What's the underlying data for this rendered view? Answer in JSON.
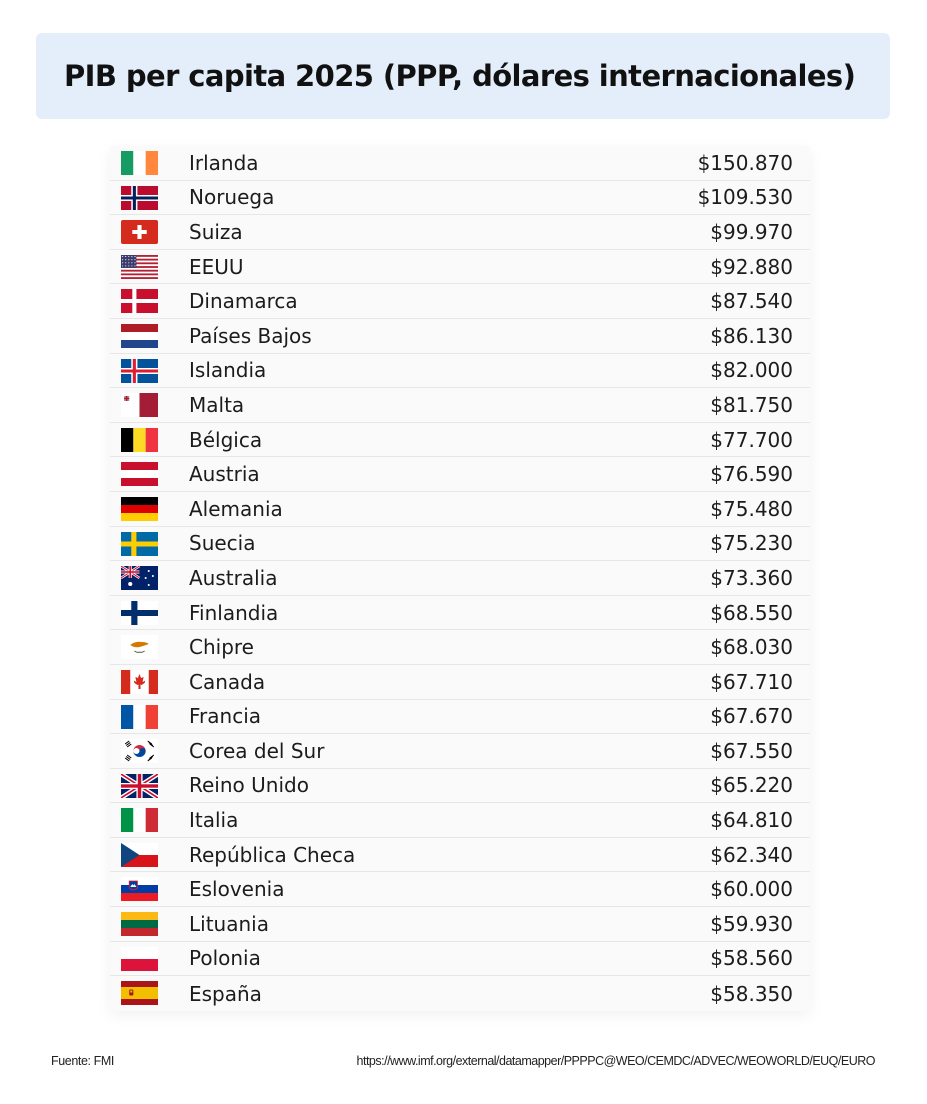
{
  "chart_data": {
    "type": "table",
    "title": "PIB per capita 2025 (PPP, dólares internacionales)",
    "rows": [
      {
        "country": "Irlanda",
        "flag_icon": "ireland-flag",
        "value_label": "$150.870",
        "value": 150870
      },
      {
        "country": "Noruega",
        "flag_icon": "norway-flag",
        "value_label": "$109.530",
        "value": 109530
      },
      {
        "country": "Suiza",
        "flag_icon": "switzerland-flag",
        "value_label": "$99.970",
        "value": 99970
      },
      {
        "country": "EEUU",
        "flag_icon": "usa-flag",
        "value_label": "$92.880",
        "value": 92880
      },
      {
        "country": "Dinamarca",
        "flag_icon": "denmark-flag",
        "value_label": "$87.540",
        "value": 87540
      },
      {
        "country": "Países Bajos",
        "flag_icon": "netherlands-flag",
        "value_label": "$86.130",
        "value": 86130
      },
      {
        "country": "Islandia",
        "flag_icon": "iceland-flag",
        "value_label": "$82.000",
        "value": 82000
      },
      {
        "country": "Malta",
        "flag_icon": "malta-flag",
        "value_label": "$81.750",
        "value": 81750
      },
      {
        "country": "Bélgica",
        "flag_icon": "belgium-flag",
        "value_label": "$77.700",
        "value": 77700
      },
      {
        "country": "Austria",
        "flag_icon": "austria-flag",
        "value_label": "$76.590",
        "value": 76590
      },
      {
        "country": "Alemania",
        "flag_icon": "germany-flag",
        "value_label": "$75.480",
        "value": 75480
      },
      {
        "country": "Suecia",
        "flag_icon": "sweden-flag",
        "value_label": "$75.230",
        "value": 75230
      },
      {
        "country": "Australia",
        "flag_icon": "australia-flag",
        "value_label": "$73.360",
        "value": 73360
      },
      {
        "country": "Finlandia",
        "flag_icon": "finland-flag",
        "value_label": "$68.550",
        "value": 68550
      },
      {
        "country": "Chipre",
        "flag_icon": "cyprus-flag",
        "value_label": "$68.030",
        "value": 68030
      },
      {
        "country": "Canada",
        "flag_icon": "canada-flag",
        "value_label": "$67.710",
        "value": 67710
      },
      {
        "country": "Francia",
        "flag_icon": "france-flag",
        "value_label": "$67.670",
        "value": 67670
      },
      {
        "country": "Corea del Sur",
        "flag_icon": "south-korea-flag",
        "value_label": "$67.550",
        "value": 67550
      },
      {
        "country": "Reino Unido",
        "flag_icon": "uk-flag",
        "value_label": "$65.220",
        "value": 65220
      },
      {
        "country": "Italia",
        "flag_icon": "italy-flag",
        "value_label": "$64.810",
        "value": 64810
      },
      {
        "country": "República Checa",
        "flag_icon": "czech-flag",
        "value_label": "$62.340",
        "value": 62340
      },
      {
        "country": "Eslovenia",
        "flag_icon": "slovenia-flag",
        "value_label": "$60.000",
        "value": 60000
      },
      {
        "country": "Lituania",
        "flag_icon": "lithuania-flag",
        "value_label": "$59.930",
        "value": 59930
      },
      {
        "country": "Polonia",
        "flag_icon": "poland-flag",
        "value_label": "$58.560",
        "value": 58560
      },
      {
        "country": "España",
        "flag_icon": "spain-flag",
        "value_label": "$58.350",
        "value": 58350
      }
    ]
  },
  "footer": {
    "source": "Fuente: FMI",
    "url": "https://www.imf.org/external/datamapper/PPPPC@WEO/CEMDC/ADVEC/WEOWORLD/EUQ/EURO"
  },
  "colors": {
    "title_background": "#e3eefa",
    "row_background": "#fafafa",
    "row_divider": "#e6e6e6"
  }
}
